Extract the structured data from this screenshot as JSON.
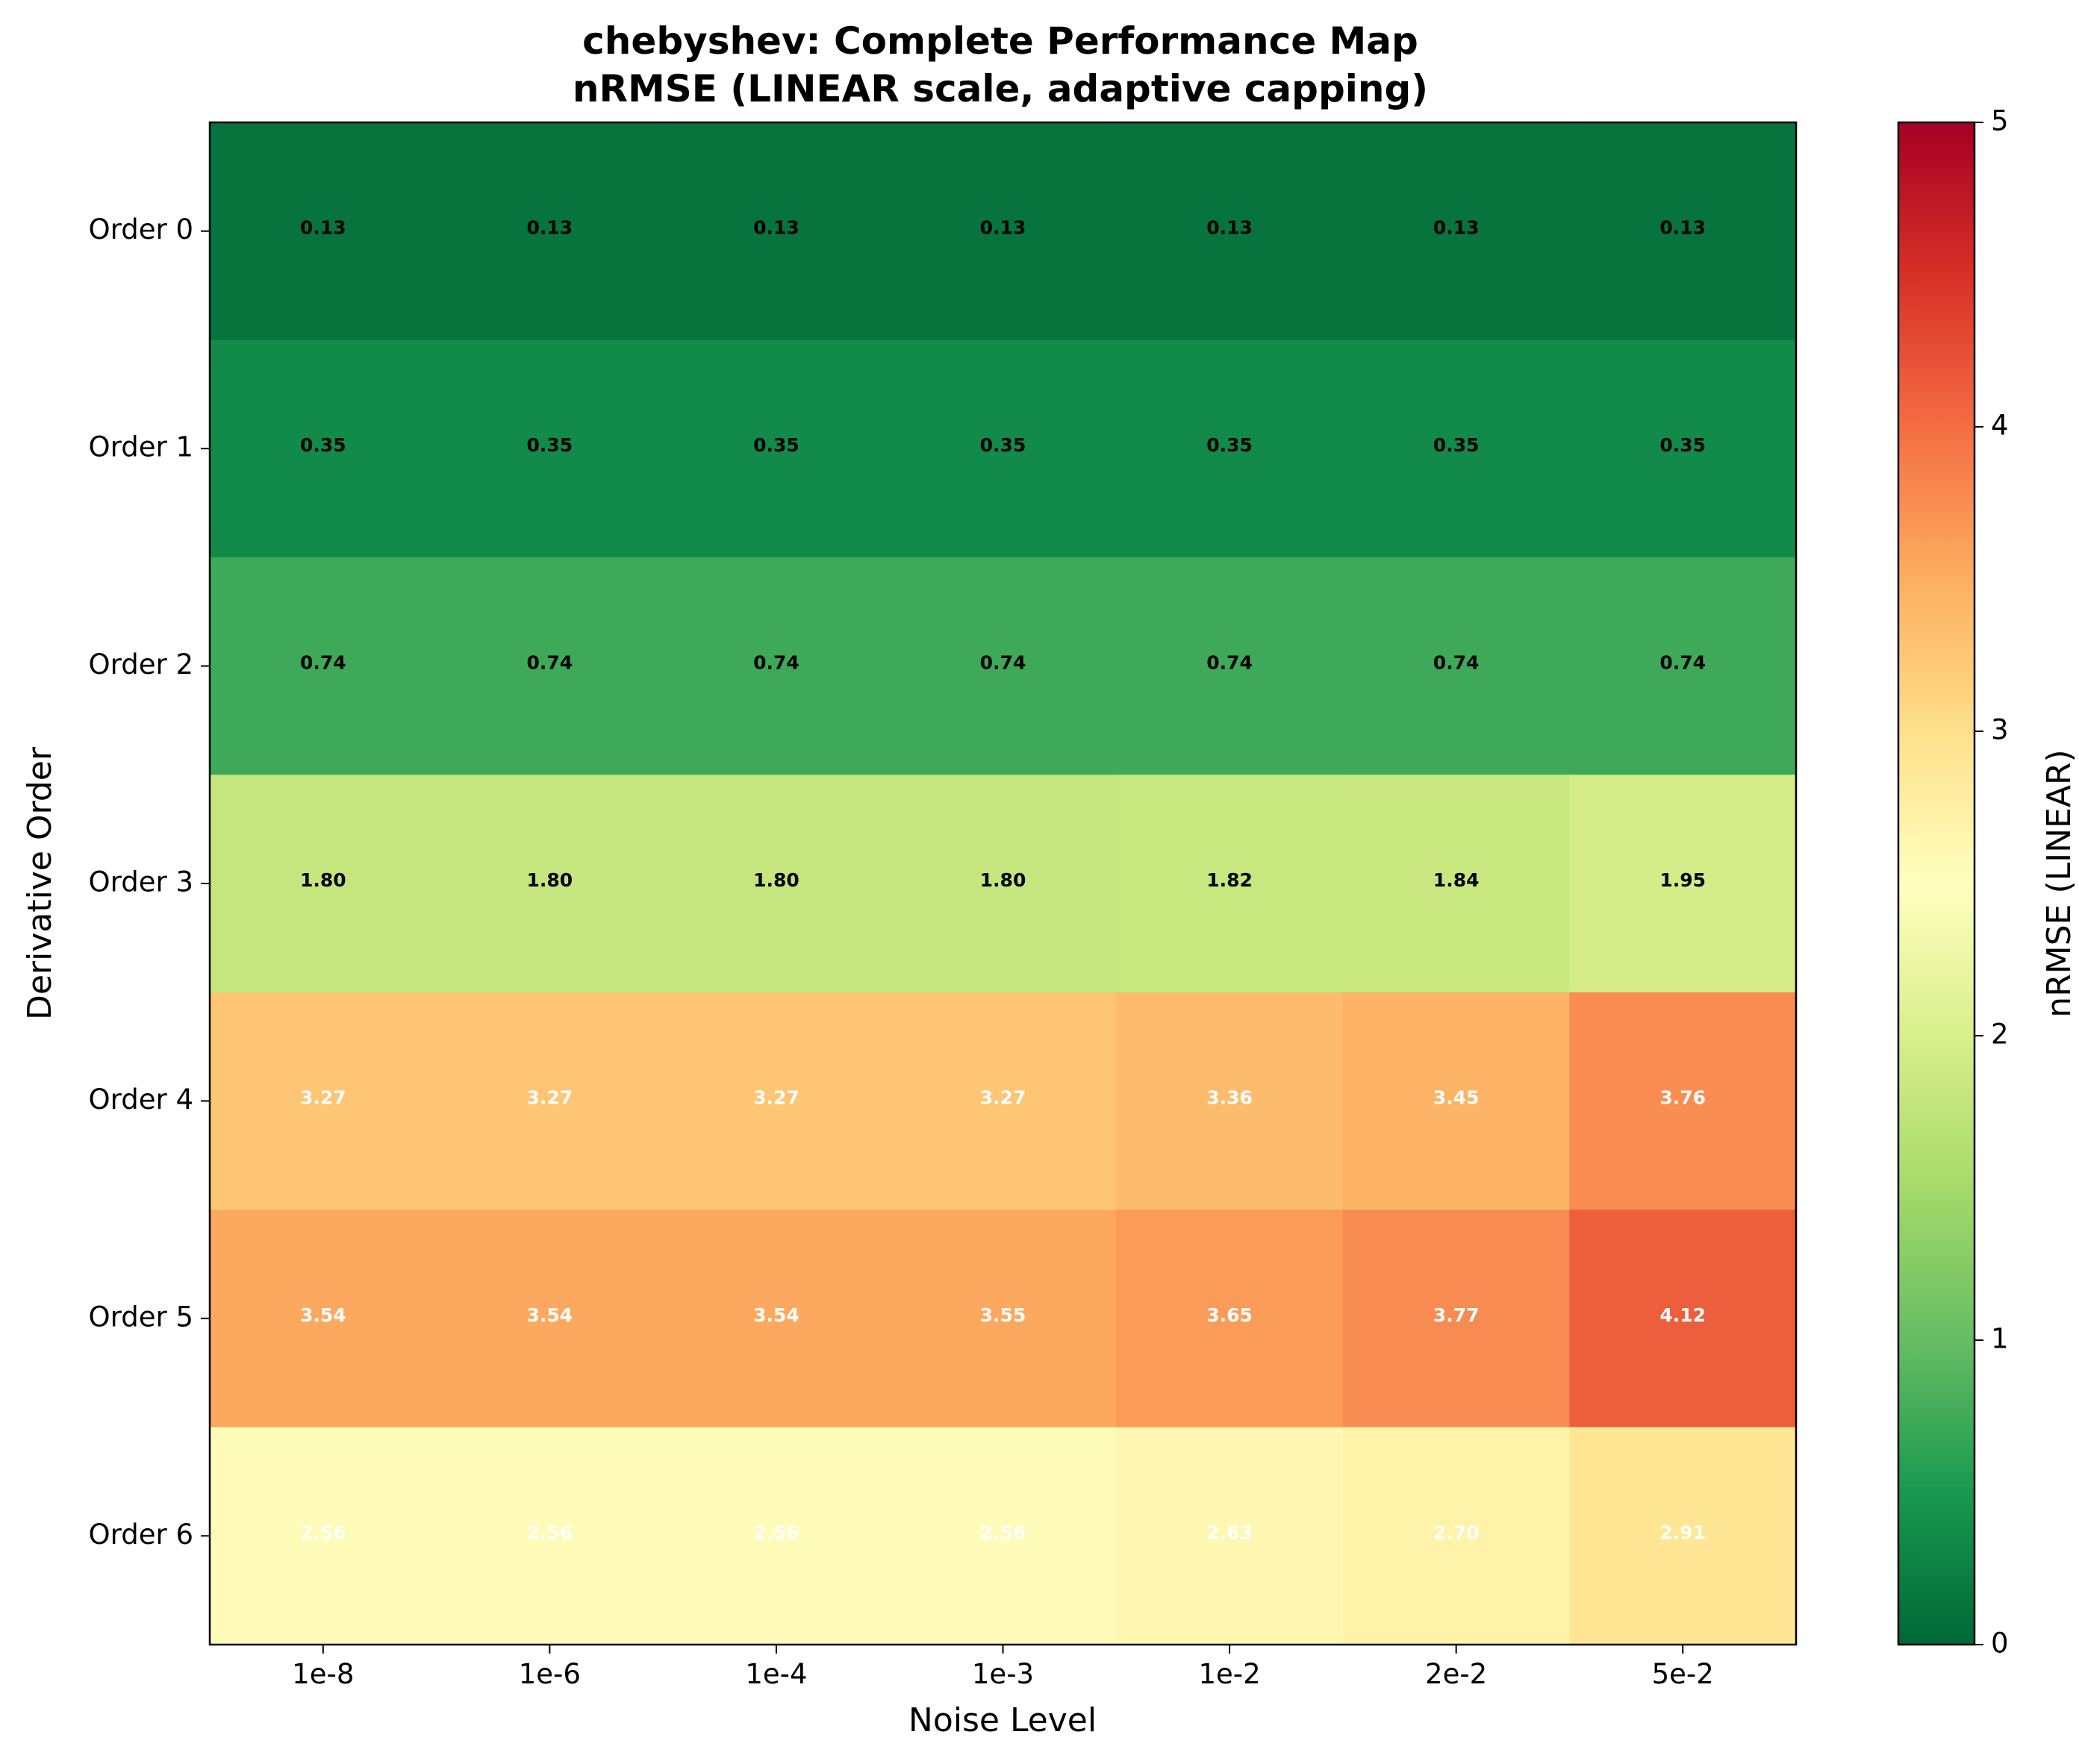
{
  "chart_data": {
    "type": "heatmap",
    "title": "chebyshev: Complete Performance Map",
    "subtitle": "nRMSE (LINEAR scale, adaptive capping)",
    "xlabel": "Noise Level",
    "ylabel": "Derivative Order",
    "x_categories": [
      "1e-8",
      "1e-6",
      "1e-4",
      "1e-3",
      "1e-2",
      "2e-2",
      "5e-2"
    ],
    "y_categories": [
      "Order 0",
      "Order 1",
      "Order 2",
      "Order 3",
      "Order 4",
      "Order 5",
      "Order 6"
    ],
    "values": [
      [
        0.13,
        0.13,
        0.13,
        0.13,
        0.13,
        0.13,
        0.13
      ],
      [
        0.35,
        0.35,
        0.35,
        0.35,
        0.35,
        0.35,
        0.35
      ],
      [
        0.74,
        0.74,
        0.74,
        0.74,
        0.74,
        0.74,
        0.74
      ],
      [
        1.8,
        1.8,
        1.8,
        1.8,
        1.82,
        1.84,
        1.95
      ],
      [
        3.27,
        3.27,
        3.27,
        3.27,
        3.36,
        3.45,
        3.76
      ],
      [
        3.54,
        3.54,
        3.54,
        3.55,
        3.65,
        3.77,
        4.12
      ],
      [
        2.56,
        2.56,
        2.56,
        2.56,
        2.63,
        2.7,
        2.91
      ]
    ],
    "value_labels": [
      [
        "0.13",
        "0.13",
        "0.13",
        "0.13",
        "0.13",
        "0.13",
        "0.13"
      ],
      [
        "0.35",
        "0.35",
        "0.35",
        "0.35",
        "0.35",
        "0.35",
        "0.35"
      ],
      [
        "0.74",
        "0.74",
        "0.74",
        "0.74",
        "0.74",
        "0.74",
        "0.74"
      ],
      [
        "1.80",
        "1.80",
        "1.80",
        "1.80",
        "1.82",
        "1.84",
        "1.95"
      ],
      [
        "3.27",
        "3.27",
        "3.27",
        "3.27",
        "3.36",
        "3.45",
        "3.76"
      ],
      [
        "3.54",
        "3.54",
        "3.54",
        "3.55",
        "3.65",
        "3.77",
        "4.12"
      ],
      [
        "2.56",
        "2.56",
        "2.56",
        "2.56",
        "2.63",
        "2.70",
        "2.91"
      ]
    ],
    "colormap": "RdYlGn_r",
    "colorbar": {
      "label": "nRMSE (LINEAR)",
      "range": [
        0,
        5
      ],
      "ticks": [
        0,
        1,
        2,
        3,
        4,
        5
      ],
      "tick_labels": [
        "0",
        "1",
        "2",
        "3",
        "4",
        "5"
      ]
    },
    "label_colors": {
      "dark": "#000000",
      "light": "#ffffff"
    },
    "label_color_threshold": 2.5
  }
}
